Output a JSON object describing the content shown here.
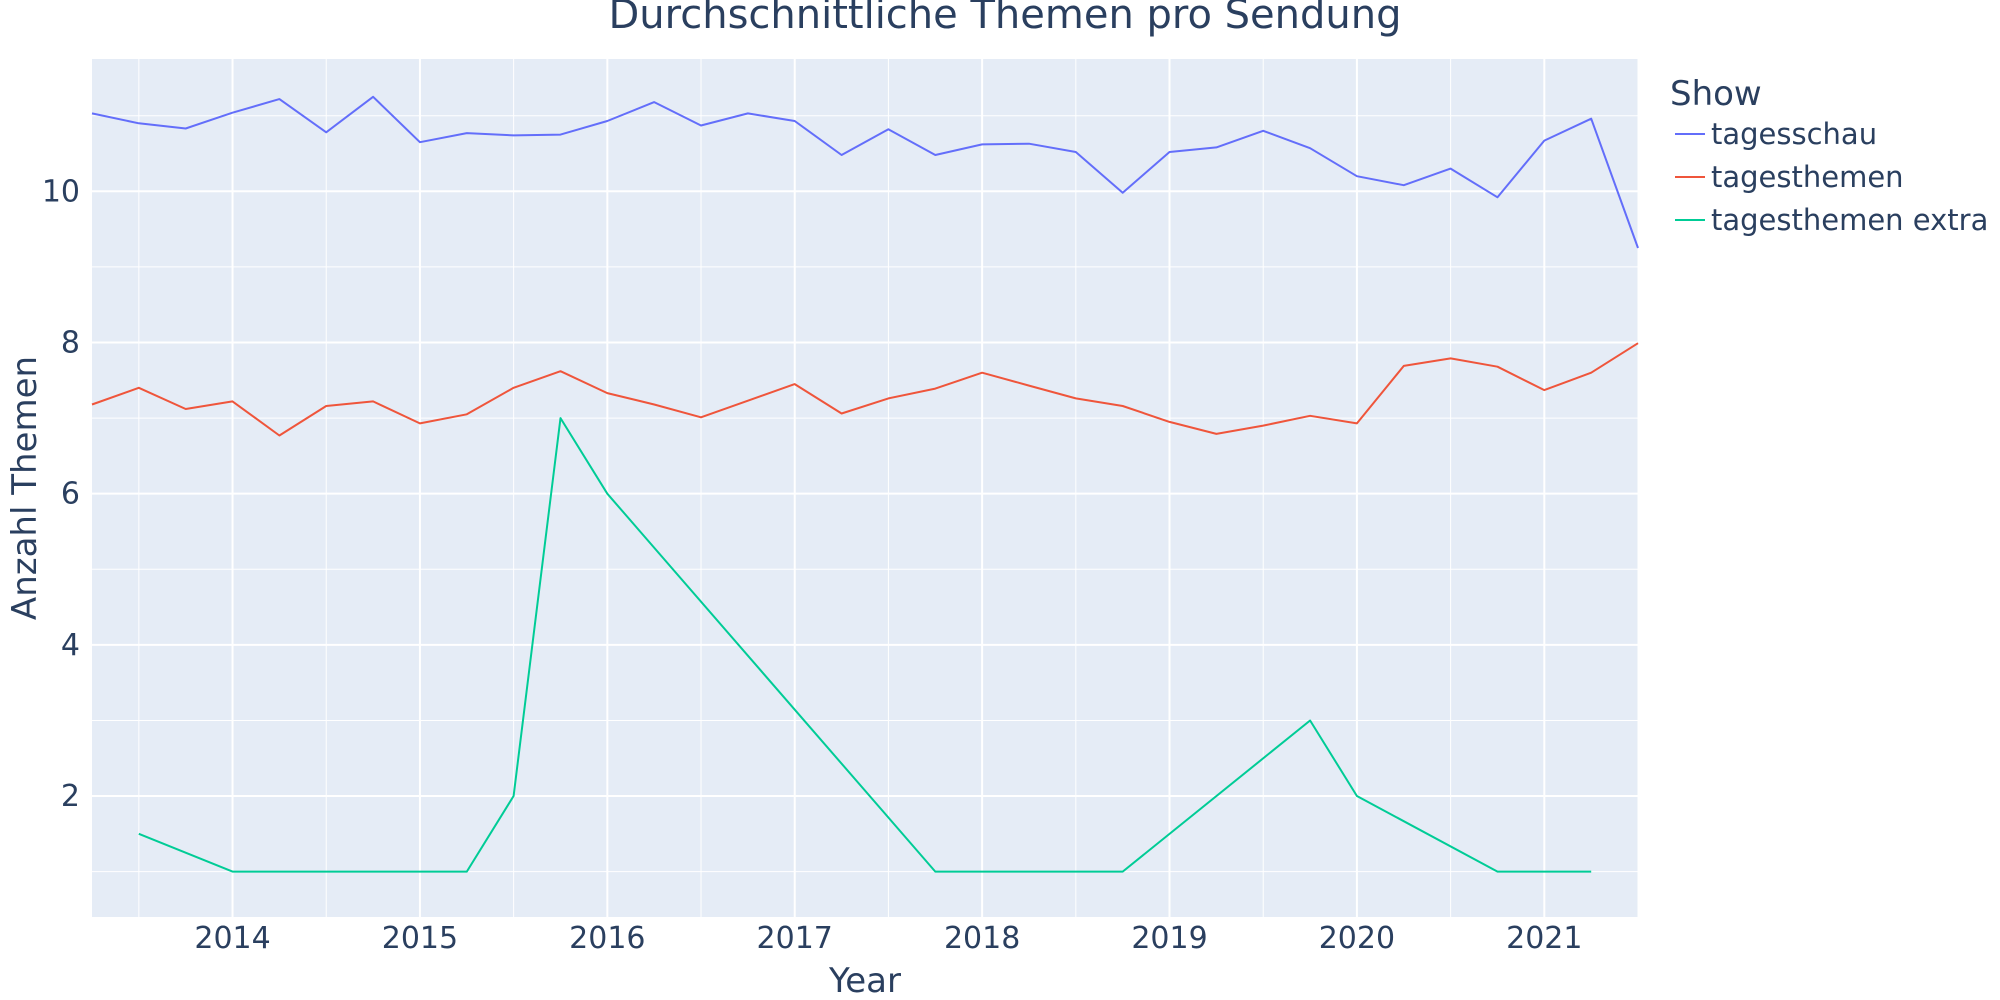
{
  "colors": {
    "plot_bg": "#e5ecf6",
    "grid": "#ffffff",
    "text": "#2a3f5f",
    "series": [
      "#636efa",
      "#ef553b",
      "#00cc96"
    ]
  },
  "chart_data": {
    "type": "line",
    "title": "Durchschnittliche Themen pro Sendung",
    "xlabel": "Year",
    "ylabel": "Anzahl Themen",
    "xlim": [
      2013.25,
      2021.5
    ],
    "ylim": [
      0.4,
      11.75
    ],
    "x_ticks": [
      2014,
      2015,
      2016,
      2017,
      2018,
      2019,
      2020,
      2021
    ],
    "x_tick_labels": [
      "2014",
      "2015",
      "2016",
      "2017",
      "2018",
      "2019",
      "2020",
      "2021"
    ],
    "y_ticks": [
      2,
      4,
      6,
      8,
      10
    ],
    "y_tick_labels": [
      "2",
      "4",
      "6",
      "8",
      "10"
    ],
    "grid": true,
    "legend": {
      "title": "Show",
      "position": "top-right-outside"
    },
    "series": [
      {
        "name": "tagesschau",
        "x": [
          2013.25,
          2013.5,
          2013.75,
          2014.0,
          2014.25,
          2014.5,
          2014.75,
          2015.0,
          2015.25,
          2015.5,
          2015.75,
          2016.0,
          2016.25,
          2016.5,
          2016.75,
          2017.0,
          2017.25,
          2017.5,
          2017.75,
          2018.0,
          2018.25,
          2018.5,
          2018.75,
          2019.0,
          2019.25,
          2019.5,
          2019.75,
          2020.0,
          2020.25,
          2020.5,
          2020.75,
          2021.0,
          2021.25,
          2021.5
        ],
        "y": [
          11.03,
          10.9,
          10.83,
          11.04,
          11.22,
          10.78,
          11.25,
          10.65,
          10.77,
          10.74,
          10.75,
          10.93,
          11.18,
          10.87,
          11.03,
          10.93,
          10.48,
          10.82,
          10.48,
          10.62,
          10.63,
          10.52,
          9.98,
          10.52,
          10.58,
          10.8,
          10.57,
          10.2,
          10.08,
          10.3,
          9.92,
          10.67,
          10.96,
          9.25
        ]
      },
      {
        "name": "tagesthemen",
        "x": [
          2013.25,
          2013.5,
          2013.75,
          2014.0,
          2014.25,
          2014.5,
          2014.75,
          2015.0,
          2015.25,
          2015.5,
          2015.75,
          2016.0,
          2016.25,
          2016.5,
          2016.75,
          2017.0,
          2017.25,
          2017.5,
          2017.75,
          2018.0,
          2018.25,
          2018.5,
          2018.75,
          2019.0,
          2019.25,
          2019.5,
          2019.75,
          2020.0,
          2020.25,
          2020.5,
          2020.75,
          2021.0,
          2021.25,
          2021.5
        ],
        "y": [
          7.18,
          7.4,
          7.12,
          7.22,
          6.77,
          7.16,
          7.22,
          6.93,
          7.05,
          7.4,
          7.62,
          7.33,
          7.18,
          7.01,
          7.23,
          7.45,
          7.06,
          7.26,
          7.39,
          7.6,
          7.43,
          7.26,
          7.16,
          6.95,
          6.79,
          6.9,
          7.03,
          6.93,
          7.69,
          7.79,
          7.68,
          7.37,
          7.6,
          7.99
        ]
      },
      {
        "name": "tagesthemen extra",
        "x": [
          2013.5,
          2014.0,
          2014.25,
          2014.5,
          2014.75,
          2015.0,
          2015.25,
          2015.5,
          2015.75,
          2016.0,
          2017.75,
          2018.0,
          2018.25,
          2018.5,
          2018.75,
          2019.75,
          2020.0,
          2020.75,
          2021.0,
          2021.25
        ],
        "y": [
          1.5,
          1.0,
          1.0,
          1.0,
          1.0,
          1.0,
          1.0,
          2.0,
          7.0,
          6.0,
          1.0,
          1.0,
          1.0,
          1.0,
          1.0,
          3.0,
          2.0,
          1.0,
          1.0,
          1.0
        ]
      }
    ]
  }
}
